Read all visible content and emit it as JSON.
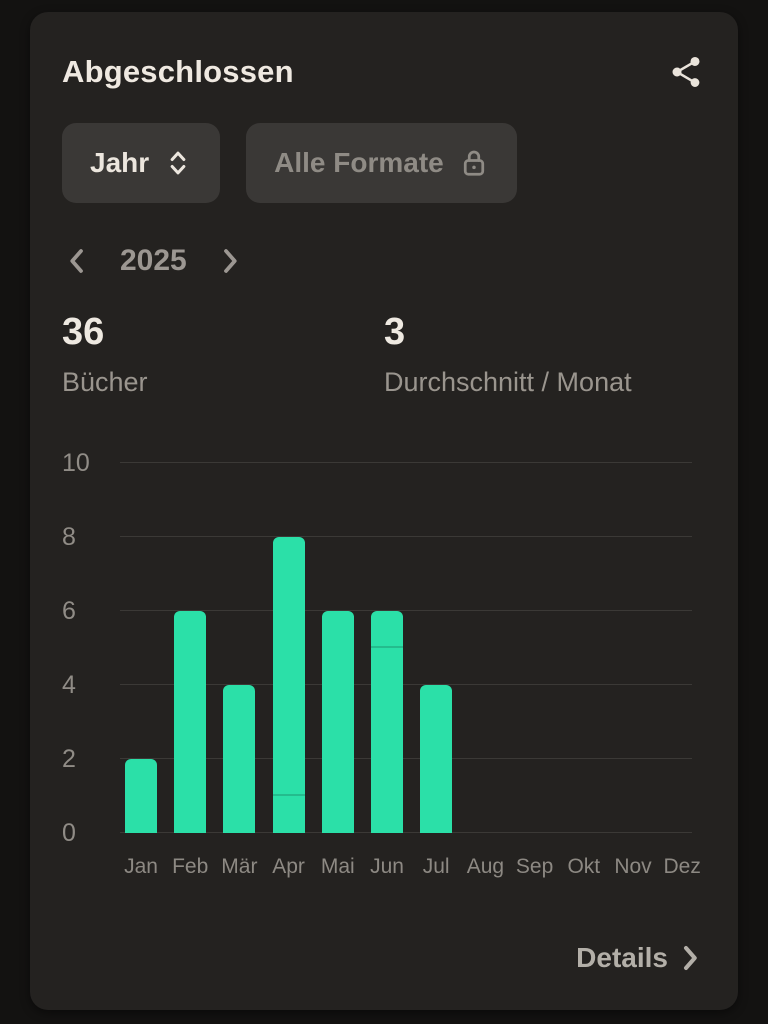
{
  "card": {
    "title": "Abgeschlossen"
  },
  "filters": {
    "period": {
      "label": "Jahr"
    },
    "format": {
      "label": "Alle Formate",
      "locked": true
    }
  },
  "year_nav": {
    "year": "2025"
  },
  "stats": [
    {
      "value": "36",
      "label": "Bücher"
    },
    {
      "value": "3",
      "label": "Durchschnitt / Monat"
    }
  ],
  "chart_data": {
    "type": "bar",
    "categories": [
      "Jan",
      "Feb",
      "Mär",
      "Apr",
      "Mai",
      "Jun",
      "Jul",
      "Aug",
      "Sep",
      "Okt",
      "Nov",
      "Dez"
    ],
    "values": [
      2,
      6,
      4,
      8,
      6,
      6,
      4,
      0,
      0,
      0,
      0,
      0
    ],
    "segment_dividers": [
      {
        "category": "Apr",
        "at": 1
      },
      {
        "category": "Jun",
        "at": 5
      }
    ],
    "title": "",
    "xlabel": "",
    "ylabel": "",
    "ylim": [
      0,
      10
    ],
    "yticks": [
      0,
      2,
      4,
      6,
      8,
      10
    ],
    "grid": true,
    "legend": false,
    "bar_color": "#2be0a8"
  },
  "footer": {
    "details_label": "Details"
  },
  "colors": {
    "accent": "#2be0a8",
    "card_bg": "#242220",
    "page_bg": "#131211",
    "text_primary": "#efe9e1",
    "text_muted": "#8f8b85"
  }
}
